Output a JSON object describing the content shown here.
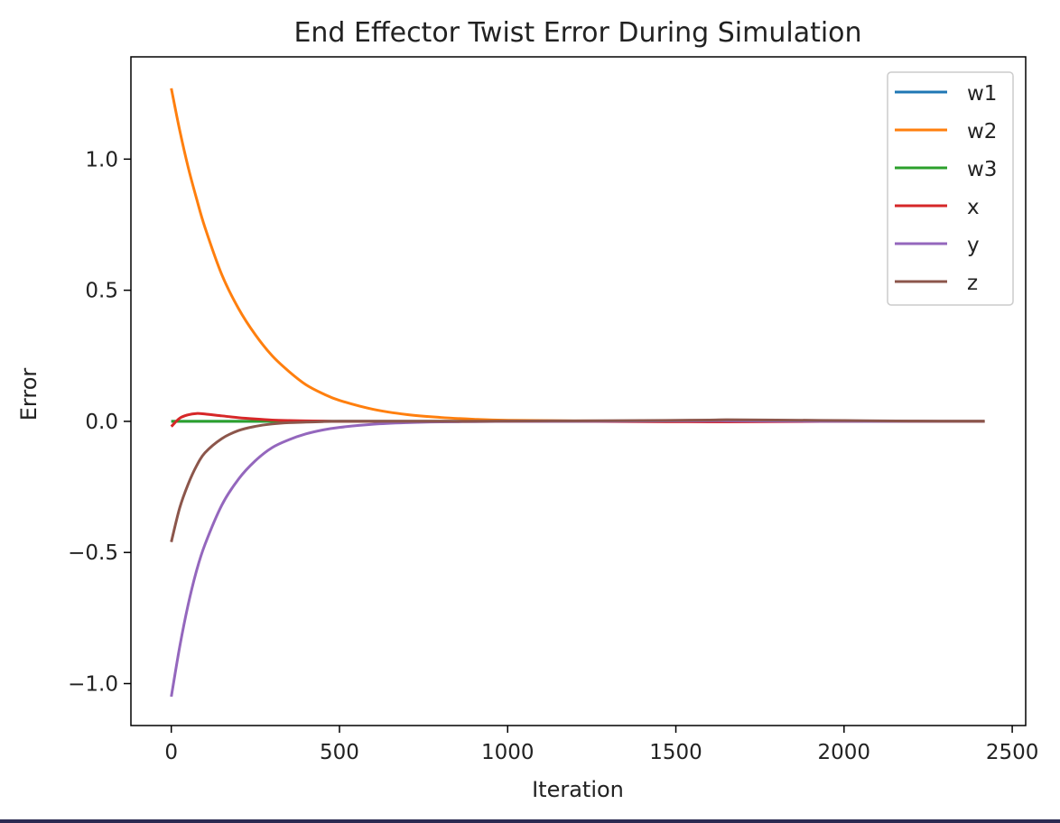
{
  "chart_data": {
    "type": "line",
    "title": "End Effector Twist Error During Simulation",
    "xlabel": "Iteration",
    "ylabel": "Error",
    "xlim": [
      -120,
      2540
    ],
    "ylim": [
      -1.16,
      1.39
    ],
    "xticks": [
      0,
      500,
      1000,
      1500,
      2000,
      2500
    ],
    "xtick_labels": [
      "0",
      "500",
      "1000",
      "1500",
      "2000",
      "2500"
    ],
    "yticks": [
      1.0,
      0.5,
      0.0,
      -0.5,
      -1.0
    ],
    "ytick_labels": [
      "1.0",
      "0.5",
      "0.0",
      "−0.5",
      "−1.0"
    ],
    "grid": false,
    "legend_position": "top-right",
    "x": [
      0,
      25,
      50,
      75,
      100,
      150,
      200,
      250,
      300,
      350,
      400,
      450,
      500,
      600,
      700,
      800,
      900,
      1000,
      1200,
      1400,
      1600,
      1650,
      1800,
      2000,
      2200,
      2418
    ],
    "series": [
      {
        "name": "w1",
        "color": "#1f77b4",
        "values": [
          0.0,
          0.0,
          0.0,
          0.0,
          0.0,
          0.0,
          0.0,
          0.0,
          0.0,
          0.0,
          0.0,
          0.0,
          0.0,
          0.0,
          0.0,
          0.0,
          0.0,
          0.0,
          0.0,
          0.0,
          0.003,
          0.004,
          0.002,
          0.001,
          0.0,
          0.0
        ]
      },
      {
        "name": "w2",
        "color": "#ff7f0e",
        "values": [
          1.27,
          1.11,
          0.97,
          0.85,
          0.74,
          0.56,
          0.43,
          0.33,
          0.25,
          0.19,
          0.14,
          0.106,
          0.08,
          0.046,
          0.026,
          0.015,
          0.008,
          0.004,
          0.002,
          0.001,
          0.002,
          0.003,
          0.002,
          0.001,
          0.0,
          0.0
        ]
      },
      {
        "name": "w3",
        "color": "#2ca02c",
        "values": [
          0.0,
          0.0,
          0.0,
          0.0,
          0.0,
          0.0,
          0.0,
          0.0,
          0.0,
          0.0,
          0.0,
          0.0,
          0.0,
          0.0,
          0.0,
          0.0,
          0.0,
          0.0,
          0.0,
          0.0,
          0.0,
          0.0,
          0.0,
          0.0,
          0.0,
          0.0
        ]
      },
      {
        "name": "x",
        "color": "#d62728",
        "values": [
          -0.02,
          0.012,
          0.025,
          0.03,
          0.028,
          0.021,
          0.014,
          0.009,
          0.005,
          0.003,
          0.002,
          0.001,
          0.0,
          0.0,
          0.0,
          0.0,
          0.0,
          0.0,
          0.0,
          -0.001,
          -0.002,
          -0.002,
          -0.001,
          0.0,
          0.0,
          0.0
        ]
      },
      {
        "name": "y",
        "color": "#9467bd",
        "values": [
          -1.05,
          -0.86,
          -0.7,
          -0.57,
          -0.47,
          -0.32,
          -0.22,
          -0.15,
          -0.1,
          -0.07,
          -0.048,
          -0.033,
          -0.023,
          -0.011,
          -0.005,
          -0.002,
          -0.001,
          0.0,
          0.0,
          0.001,
          0.002,
          0.002,
          0.001,
          0.0,
          0.0,
          0.0
        ]
      },
      {
        "name": "z",
        "color": "#8c564b",
        "values": [
          -0.46,
          -0.33,
          -0.24,
          -0.17,
          -0.12,
          -0.066,
          -0.035,
          -0.019,
          -0.01,
          -0.005,
          -0.003,
          -0.001,
          0.0,
          0.0,
          0.0,
          0.0,
          0.0,
          0.001,
          0.002,
          0.003,
          0.005,
          0.006,
          0.005,
          0.003,
          0.001,
          0.0
        ]
      }
    ]
  }
}
